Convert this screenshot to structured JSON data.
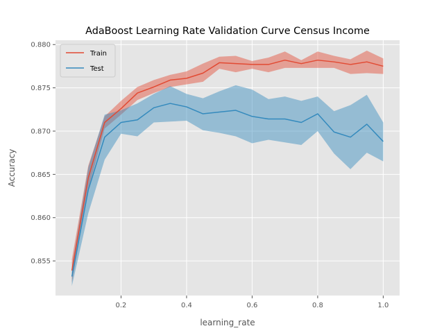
{
  "chart_data": {
    "type": "line",
    "title": "AdaBoost Learning Rate Validation Curve Census Income",
    "xlabel": "learning_rate",
    "ylabel": "Accuracy",
    "xlim": [
      0.0,
      1.05
    ],
    "ylim": [
      0.851,
      0.8805
    ],
    "x_ticks": [
      0.2,
      0.4,
      0.6,
      0.8,
      1.0
    ],
    "x_tick_labels": [
      "0.2",
      "0.4",
      "0.6",
      "0.8",
      "1.0"
    ],
    "y_ticks": [
      0.855,
      0.86,
      0.865,
      0.87,
      0.875,
      0.88
    ],
    "y_tick_labels": [
      "0.855",
      "0.860",
      "0.865",
      "0.870",
      "0.875",
      "0.880"
    ],
    "grid": true,
    "legend_position": "top-left",
    "x": [
      0.05,
      0.1,
      0.15,
      0.2,
      0.25,
      0.3,
      0.35,
      0.4,
      0.45,
      0.5,
      0.55,
      0.6,
      0.65,
      0.7,
      0.75,
      0.8,
      0.85,
      0.9,
      0.95,
      1.0
    ],
    "series": [
      {
        "name": "Train",
        "color": "#e24a33",
        "values": [
          0.8539,
          0.8646,
          0.871,
          0.8726,
          0.8744,
          0.8751,
          0.8759,
          0.8761,
          0.8767,
          0.8779,
          0.8778,
          0.8777,
          0.8777,
          0.8782,
          0.8778,
          0.8782,
          0.878,
          0.8777,
          0.878,
          0.8775
        ],
        "band_upper": [
          0.8552,
          0.866,
          0.8717,
          0.8735,
          0.8751,
          0.8759,
          0.8765,
          0.8769,
          0.8778,
          0.8786,
          0.8787,
          0.8781,
          0.8785,
          0.8792,
          0.8782,
          0.8792,
          0.8787,
          0.8783,
          0.8793,
          0.8784
        ],
        "band_lower": [
          0.8525,
          0.8633,
          0.8703,
          0.8719,
          0.8736,
          0.8744,
          0.8751,
          0.8754,
          0.8757,
          0.8772,
          0.8768,
          0.8772,
          0.8768,
          0.8773,
          0.8773,
          0.8773,
          0.8773,
          0.8766,
          0.8767,
          0.8766
        ]
      },
      {
        "name": "Test",
        "color": "#348abd",
        "values": [
          0.8532,
          0.8632,
          0.8693,
          0.871,
          0.8713,
          0.8727,
          0.8732,
          0.8728,
          0.872,
          0.8722,
          0.8724,
          0.8717,
          0.8714,
          0.8714,
          0.871,
          0.872,
          0.8699,
          0.8693,
          0.8708,
          0.8688
        ],
        "band_upper": [
          0.8543,
          0.8658,
          0.8719,
          0.8724,
          0.8732,
          0.8743,
          0.8752,
          0.8743,
          0.8738,
          0.8746,
          0.8753,
          0.8748,
          0.8737,
          0.874,
          0.8735,
          0.874,
          0.8723,
          0.873,
          0.8742,
          0.871
        ],
        "band_lower": [
          0.8521,
          0.8605,
          0.8667,
          0.8697,
          0.8694,
          0.871,
          0.8711,
          0.8712,
          0.8701,
          0.8698,
          0.8694,
          0.8686,
          0.869,
          0.8687,
          0.8684,
          0.87,
          0.8674,
          0.8656,
          0.8675,
          0.8665
        ]
      }
    ]
  }
}
